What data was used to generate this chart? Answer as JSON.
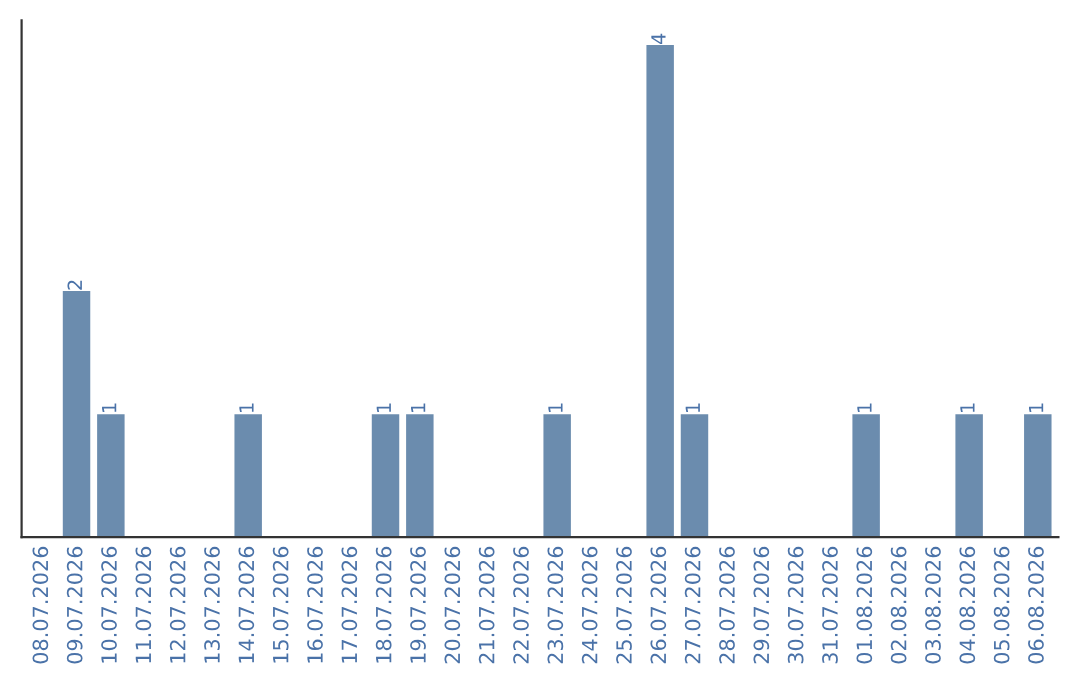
{
  "chart_data": {
    "type": "bar",
    "categories": [
      "08.07.2026",
      "09.07.2026",
      "10.07.2026",
      "11.07.2026",
      "12.07.2026",
      "13.07.2026",
      "14.07.2026",
      "15.07.2026",
      "16.07.2026",
      "17.07.2026",
      "18.07.2026",
      "19.07.2026",
      "20.07.2026",
      "21.07.2026",
      "22.07.2026",
      "23.07.2026",
      "24.07.2026",
      "25.07.2026",
      "26.07.2026",
      "27.07.2026",
      "28.07.2026",
      "29.07.2026",
      "30.07.2026",
      "31.07.2026",
      "01.08.2026",
      "02.08.2026",
      "03.08.2026",
      "04.08.2026",
      "05.08.2026",
      "06.08.2026"
    ],
    "values": [
      0,
      2,
      1,
      0,
      0,
      0,
      1,
      0,
      0,
      0,
      1,
      1,
      0,
      0,
      0,
      1,
      0,
      0,
      4,
      1,
      0,
      0,
      0,
      0,
      1,
      0,
      0,
      1,
      0,
      1
    ],
    "value_labels": [
      null,
      "2",
      "1",
      null,
      null,
      null,
      "1",
      null,
      null,
      null,
      "1",
      "1",
      null,
      null,
      null,
      "1",
      null,
      null,
      "4",
      "1",
      null,
      null,
      null,
      null,
      "1",
      null,
      null,
      "1",
      null,
      "1"
    ],
    "color": "#6b8cae",
    "tick_labels": "x",
    "grid": false,
    "legend": false
  }
}
